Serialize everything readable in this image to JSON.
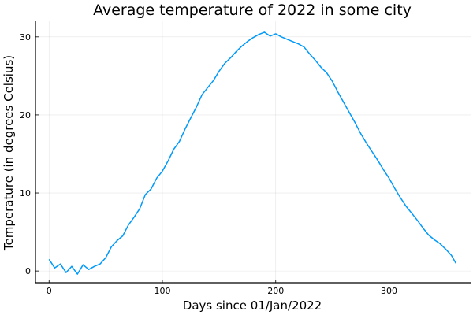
{
  "chart_data": {
    "type": "line",
    "title": "Average temperature of 2022 in some city",
    "xlabel": "Days since 01/Jan/2022",
    "ylabel": "Temperature (in degrees Celsius)",
    "xlim": [
      -12,
      372
    ],
    "ylim": [
      -1.5,
      32
    ],
    "xticks": [
      0,
      100,
      200,
      300
    ],
    "yticks": [
      0,
      10,
      20,
      30
    ],
    "grid": true,
    "legend": "none",
    "series": [
      {
        "color": "#009AFA",
        "x": [
          0,
          5,
          10,
          15,
          20,
          25,
          30,
          35,
          40,
          45,
          50,
          55,
          60,
          65,
          70,
          75,
          80,
          85,
          90,
          95,
          100,
          105,
          110,
          115,
          120,
          125,
          130,
          135,
          140,
          145,
          150,
          155,
          160,
          165,
          170,
          175,
          180,
          185,
          190,
          195,
          200,
          205,
          210,
          215,
          220,
          225,
          230,
          235,
          240,
          245,
          250,
          255,
          260,
          265,
          270,
          275,
          280,
          285,
          290,
          295,
          300,
          305,
          310,
          315,
          320,
          325,
          330,
          335,
          340,
          345,
          350,
          355,
          359
        ],
        "y": [
          1.5,
          0.4,
          0.9,
          -0.2,
          0.6,
          -0.4,
          0.8,
          0.2,
          0.6,
          0.9,
          1.7,
          3.1,
          3.9,
          4.5,
          5.9,
          6.9,
          8.0,
          9.8,
          10.5,
          11.9,
          12.8,
          14.1,
          15.6,
          16.6,
          18.2,
          19.6,
          21.0,
          22.6,
          23.5,
          24.4,
          25.6,
          26.6,
          27.3,
          28.1,
          28.8,
          29.4,
          29.9,
          30.3,
          30.6,
          30.1,
          30.4,
          30.0,
          29.7,
          29.4,
          29.1,
          28.7,
          27.8,
          27.0,
          26.1,
          25.4,
          24.3,
          22.9,
          21.6,
          20.3,
          19.0,
          17.6,
          16.4,
          15.3,
          14.2,
          13.0,
          11.9,
          10.6,
          9.4,
          8.3,
          7.4,
          6.5,
          5.5,
          4.6,
          4.0,
          3.5,
          2.8,
          2.0,
          1.0
        ]
      }
    ]
  }
}
